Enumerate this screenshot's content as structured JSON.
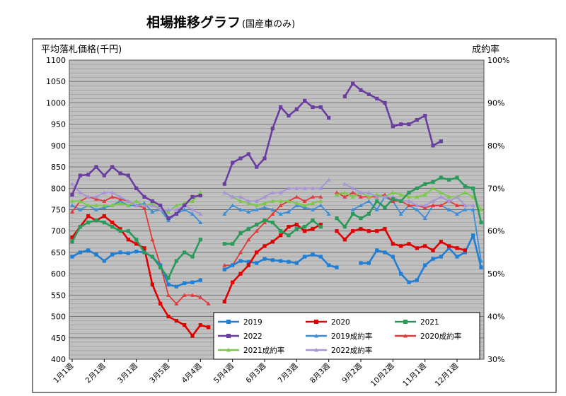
{
  "chart_data": {
    "type": "line",
    "title": "相場推移グラフ",
    "subtitle": "(国産車のみ)",
    "ylabel": "平均落札価格(千円)",
    "y2label": "成約率",
    "ylim": [
      400,
      1100
    ],
    "yticks": [
      400,
      450,
      500,
      550,
      600,
      650,
      700,
      750,
      800,
      850,
      900,
      950,
      1000,
      1050,
      1100
    ],
    "y2lim": [
      30,
      100
    ],
    "y2ticks": [
      "30%",
      "40%",
      "50%",
      "60%",
      "70%",
      "80%",
      "90%",
      "100%"
    ],
    "x_count": 52,
    "x_labels": [
      {
        "i": 0,
        "label": "1月1週"
      },
      {
        "i": 4,
        "label": "2月1週"
      },
      {
        "i": 8,
        "label": "3月1週"
      },
      {
        "i": 12,
        "label": "3月5週"
      },
      {
        "i": 16,
        "label": "4月4週"
      },
      {
        "i": 20,
        "label": "5月4週"
      },
      {
        "i": 24,
        "label": "6月3週"
      },
      {
        "i": 28,
        "label": "7月3週"
      },
      {
        "i": 32,
        "label": "8月3週"
      },
      {
        "i": 36,
        "label": "9月2週"
      },
      {
        "i": 40,
        "label": "10月2週"
      },
      {
        "i": 44,
        "label": "11月1週"
      },
      {
        "i": 48,
        "label": "12月1週"
      }
    ],
    "series": [
      {
        "name": "2019",
        "axis": "left",
        "color": "#1f7fd4",
        "marker": "square",
        "values": [
          640,
          650,
          655,
          645,
          630,
          645,
          650,
          648,
          652,
          650,
          640,
          620,
          575,
          570,
          578,
          580,
          585,
          null,
          null,
          610,
          620,
          630,
          628,
          625,
          635,
          632,
          630,
          628,
          625,
          640,
          645,
          640,
          620,
          615,
          null,
          null,
          625,
          625,
          655,
          650,
          640,
          600,
          580,
          585,
          620,
          635,
          640,
          660,
          640,
          650,
          690,
          615
        ]
      },
      {
        "name": "2020",
        "axis": "left",
        "color": "#e00000",
        "marker": "square",
        "values": [
          685,
          710,
          735,
          725,
          735,
          720,
          705,
          680,
          670,
          660,
          575,
          530,
          500,
          490,
          480,
          455,
          480,
          475,
          null,
          535,
          580,
          600,
          620,
          650,
          665,
          675,
          690,
          710,
          715,
          700,
          705,
          715,
          null,
          700,
          680,
          700,
          705,
          700,
          700,
          705,
          670,
          665,
          670,
          660,
          665,
          655,
          675,
          665,
          660,
          655,
          null,
          null
        ]
      },
      {
        "name": "2021",
        "axis": "left",
        "color": "#2a9a5a",
        "marker": "square",
        "values": [
          675,
          710,
          720,
          725,
          720,
          710,
          700,
          700,
          680,
          650,
          640,
          615,
          590,
          630,
          650,
          640,
          680,
          null,
          null,
          670,
          670,
          695,
          705,
          715,
          725,
          720,
          700,
          690,
          705,
          710,
          725,
          710,
          null,
          730,
          710,
          740,
          730,
          740,
          770,
          755,
          775,
          770,
          790,
          800,
          810,
          815,
          825,
          820,
          825,
          805,
          800,
          720
        ]
      },
      {
        "name": "2022",
        "axis": "left",
        "color": "#6a3da0",
        "marker": "square",
        "values": [
          785,
          830,
          832,
          850,
          830,
          850,
          835,
          830,
          800,
          780,
          770,
          760,
          730,
          740,
          760,
          780,
          783,
          null,
          null,
          810,
          860,
          870,
          880,
          850,
          870,
          940,
          990,
          970,
          985,
          1005,
          990,
          990,
          965,
          null,
          1015,
          1045,
          1030,
          1020,
          1010,
          1000,
          945,
          950,
          950,
          960,
          970,
          900,
          910,
          null,
          null,
          null,
          null,
          null
        ]
      },
      {
        "name": "2019成約率",
        "axis": "right",
        "color": "#3a8ed8",
        "marker": "triangle",
        "values": [
          66,
          65,
          66,
          65,
          65.5,
          66,
          67,
          66,
          66,
          66.5,
          64.5,
          65,
          62.5,
          64,
          65,
          64,
          62,
          null,
          null,
          64,
          66,
          65,
          64.5,
          65,
          65.5,
          65,
          64,
          64.5,
          66,
          65.5,
          65,
          66,
          64,
          null,
          null,
          65,
          66,
          67,
          65,
          68,
          67,
          64,
          66,
          65,
          63,
          66,
          66,
          65,
          64,
          65,
          65,
          53
        ]
      },
      {
        "name": "2020成約率",
        "axis": "right",
        "color": "#e03a3a",
        "marker": "triangle",
        "values": [
          64.5,
          67,
          68,
          67.5,
          67,
          68,
          67.5,
          67,
          66,
          65.5,
          58,
          52,
          45,
          43,
          45,
          45,
          44.5,
          43,
          null,
          52,
          52,
          55,
          58,
          60,
          62,
          64,
          66,
          67,
          68,
          67,
          68,
          68,
          null,
          69,
          68,
          69,
          68,
          68,
          68,
          68.5,
          67,
          67,
          66,
          66,
          65.5,
          66,
          66,
          67,
          66,
          66,
          null,
          null
        ]
      },
      {
        "name": "2021成約率",
        "axis": "right",
        "color": "#7ac943",
        "marker": "triangle",
        "values": [
          67,
          67,
          66,
          66,
          66,
          66,
          66.5,
          66,
          67,
          66,
          66.5,
          65,
          64.5,
          66,
          66.5,
          67,
          69,
          null,
          null,
          69,
          68,
          67,
          66.5,
          66,
          66.5,
          67,
          67,
          67,
          66.5,
          66,
          66.5,
          67,
          null,
          68.5,
          69,
          68,
          69,
          68,
          68.5,
          68,
          69,
          68.5,
          68,
          68,
          68.5,
          70,
          69,
          68,
          68,
          69,
          68,
          65
        ]
      },
      {
        "name": "2022成約率",
        "axis": "right",
        "color": "#a693d8",
        "marker": "triangle",
        "values": [
          71,
          69,
          68,
          68,
          69,
          69,
          68,
          67,
          66,
          66,
          66,
          65,
          65,
          65,
          66,
          65,
          64,
          null,
          null,
          69,
          68,
          68,
          67,
          67,
          68,
          69,
          69,
          70,
          70,
          70,
          70,
          70,
          72,
          null,
          71,
          70,
          69,
          69,
          68,
          68,
          68,
          67,
          67,
          66,
          66,
          67,
          68,
          67,
          68,
          66,
          66,
          null
        ]
      }
    ],
    "legend": [
      {
        "series": "2019",
        "label": "2019"
      },
      {
        "series": "2020",
        "label": "2020"
      },
      {
        "series": "2021",
        "label": "2021"
      },
      {
        "series": "2022",
        "label": "2022"
      },
      {
        "series": "2019成約率",
        "label": "2019成約率"
      },
      {
        "series": "2020成約率",
        "label": "2020成約率"
      },
      {
        "series": "2021成約率",
        "label": "2021成約率"
      },
      {
        "series": "2022成約率",
        "label": "2022成約率"
      }
    ]
  }
}
